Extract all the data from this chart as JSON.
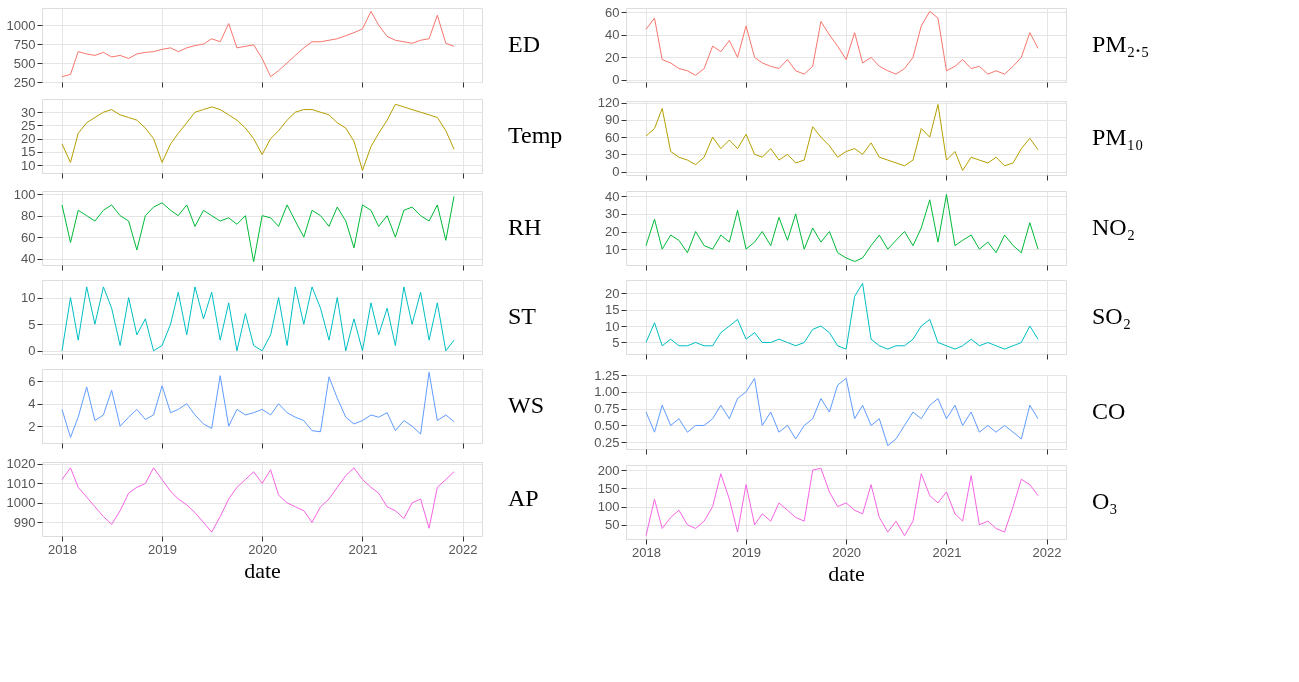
{
  "chart_data": [
    {
      "type": "line",
      "ylabel": "ED",
      "color": "#F8766D",
      "ylim": [
        250,
        1225
      ],
      "yticks": [
        250,
        500,
        750,
        1000
      ],
      "tick_labels": "y",
      "grid": true,
      "xlim": [
        "2017-10-20",
        "2022-03-13"
      ],
      "xticks": [
        "2018",
        "2019",
        "2020",
        "2021",
        "2022"
      ],
      "x": [
        "2018-01",
        "2018-02",
        "2018-03",
        "2018-04",
        "2018-05",
        "2018-06",
        "2018-07",
        "2018-08",
        "2018-09",
        "2018-10",
        "2018-11",
        "2018-12",
        "2019-01",
        "2019-02",
        "2019-03",
        "2019-04",
        "2019-05",
        "2019-06",
        "2019-07",
        "2019-08",
        "2019-09",
        "2019-10",
        "2019-11",
        "2019-12",
        "2020-01",
        "2020-02",
        "2020-03",
        "2020-04",
        "2020-05",
        "2020-06",
        "2020-07",
        "2020-08",
        "2020-09",
        "2020-10",
        "2020-11",
        "2020-12",
        "2021-01",
        "2021-02",
        "2021-03",
        "2021-04",
        "2021-05",
        "2021-06",
        "2021-07",
        "2021-08",
        "2021-09",
        "2021-10",
        "2021-11",
        "2021-12"
      ],
      "values": [
        320,
        350,
        650,
        620,
        600,
        640,
        580,
        600,
        560,
        620,
        640,
        650,
        680,
        700,
        650,
        700,
        730,
        750,
        820,
        780,
        1020,
        700,
        720,
        740,
        560,
        320,
        400,
        500,
        600,
        700,
        780,
        780,
        800,
        820,
        860,
        900,
        950,
        1180,
        1000,
        850,
        800,
        780,
        760,
        800,
        820,
        1130,
        760,
        720
      ]
    },
    {
      "type": "line",
      "ylabel": "Temp",
      "color": "#B79F00",
      "ylim": [
        7,
        35
      ],
      "yticks": [
        10,
        15,
        20,
        25,
        30
      ],
      "tick_labels": "y",
      "grid": true,
      "xlim": [
        "2017-10-20",
        "2022-03-13"
      ],
      "xticks": [
        "2018",
        "2019",
        "2020",
        "2021",
        "2022"
      ],
      "x": [
        "2018-01",
        "2018-02",
        "2018-03",
        "2018-04",
        "2018-05",
        "2018-06",
        "2018-07",
        "2018-08",
        "2018-09",
        "2018-10",
        "2018-11",
        "2018-12",
        "2019-01",
        "2019-02",
        "2019-03",
        "2019-04",
        "2019-05",
        "2019-06",
        "2019-07",
        "2019-08",
        "2019-09",
        "2019-10",
        "2019-11",
        "2019-12",
        "2020-01",
        "2020-02",
        "2020-03",
        "2020-04",
        "2020-05",
        "2020-06",
        "2020-07",
        "2020-08",
        "2020-09",
        "2020-10",
        "2020-11",
        "2020-12",
        "2021-01",
        "2021-02",
        "2021-03",
        "2021-04",
        "2021-05",
        "2021-06",
        "2021-07",
        "2021-08",
        "2021-09",
        "2021-10",
        "2021-11",
        "2021-12"
      ],
      "values": [
        18,
        11,
        22,
        26,
        28,
        30,
        31,
        29,
        28,
        27,
        24,
        20,
        11,
        18,
        22,
        26,
        30,
        31,
        32,
        31,
        29,
        27,
        24,
        20,
        14,
        20,
        23,
        27,
        30,
        31,
        31,
        30,
        29,
        26,
        24,
        19,
        8,
        17,
        22,
        27,
        33,
        32,
        31,
        30,
        29,
        28,
        23,
        16
      ]
    },
    {
      "type": "line",
      "ylabel": "RH",
      "color": "#00BA38",
      "ylim": [
        34,
        103
      ],
      "yticks": [
        40,
        60,
        80,
        100
      ],
      "tick_labels": "y",
      "grid": true,
      "xlim": [
        "2017-10-20",
        "2022-03-13"
      ],
      "xticks": [
        "2018",
        "2019",
        "2020",
        "2021",
        "2022"
      ],
      "x": [
        "2018-01",
        "2018-02",
        "2018-03",
        "2018-04",
        "2018-05",
        "2018-06",
        "2018-07",
        "2018-08",
        "2018-09",
        "2018-10",
        "2018-11",
        "2018-12",
        "2019-01",
        "2019-02",
        "2019-03",
        "2019-04",
        "2019-05",
        "2019-06",
        "2019-07",
        "2019-08",
        "2019-09",
        "2019-10",
        "2019-11",
        "2019-12",
        "2020-01",
        "2020-02",
        "2020-03",
        "2020-04",
        "2020-05",
        "2020-06",
        "2020-07",
        "2020-08",
        "2020-09",
        "2020-10",
        "2020-11",
        "2020-12",
        "2021-01",
        "2021-02",
        "2021-03",
        "2021-04",
        "2021-05",
        "2021-06",
        "2021-07",
        "2021-08",
        "2021-09",
        "2021-10",
        "2021-11",
        "2021-12"
      ],
      "values": [
        90,
        55,
        85,
        80,
        75,
        85,
        90,
        80,
        75,
        48,
        80,
        88,
        92,
        85,
        80,
        90,
        70,
        85,
        80,
        75,
        78,
        72,
        80,
        37,
        80,
        78,
        70,
        90,
        75,
        60,
        85,
        80,
        70,
        88,
        75,
        50,
        90,
        85,
        70,
        80,
        60,
        85,
        88,
        80,
        75,
        90,
        57,
        98
      ]
    },
    {
      "type": "line",
      "ylabel": "ST",
      "color": "#00BFC4",
      "ylim": [
        -0.6,
        13.3
      ],
      "yticks": [
        0,
        5,
        10
      ],
      "tick_labels": "y",
      "grid": true,
      "xlim": [
        "2017-10-20",
        "2022-03-13"
      ],
      "xticks": [
        "2018",
        "2019",
        "2020",
        "2021",
        "2022"
      ],
      "x": [
        "2018-01",
        "2018-02",
        "2018-03",
        "2018-04",
        "2018-05",
        "2018-06",
        "2018-07",
        "2018-08",
        "2018-09",
        "2018-10",
        "2018-11",
        "2018-12",
        "2019-01",
        "2019-02",
        "2019-03",
        "2019-04",
        "2019-05",
        "2019-06",
        "2019-07",
        "2019-08",
        "2019-09",
        "2019-10",
        "2019-11",
        "2019-12",
        "2020-01",
        "2020-02",
        "2020-03",
        "2020-04",
        "2020-05",
        "2020-06",
        "2020-07",
        "2020-08",
        "2020-09",
        "2020-10",
        "2020-11",
        "2020-12",
        "2021-01",
        "2021-02",
        "2021-03",
        "2021-04",
        "2021-05",
        "2021-06",
        "2021-07",
        "2021-08",
        "2021-09",
        "2021-10",
        "2021-11",
        "2021-12"
      ],
      "values": [
        0,
        10,
        2,
        12,
        5,
        12,
        8,
        1,
        10,
        3,
        6,
        0,
        1,
        5,
        11,
        3,
        12,
        6,
        11,
        2,
        9,
        0,
        7,
        1,
        0,
        3,
        10,
        1,
        12,
        5,
        12,
        8,
        2,
        10,
        0,
        6,
        0,
        9,
        3,
        8,
        1,
        12,
        5,
        11,
        2,
        9,
        0,
        2
      ]
    },
    {
      "type": "line",
      "ylabel": "WS",
      "color": "#619CFF",
      "ylim": [
        0.5,
        7.1
      ],
      "yticks": [
        2,
        4,
        6
      ],
      "tick_labels": "y",
      "grid": true,
      "xlim": [
        "2017-10-20",
        "2022-03-13"
      ],
      "xticks": [
        "2018",
        "2019",
        "2020",
        "2021",
        "2022"
      ],
      "x": [
        "2018-01",
        "2018-02",
        "2018-03",
        "2018-04",
        "2018-05",
        "2018-06",
        "2018-07",
        "2018-08",
        "2018-09",
        "2018-10",
        "2018-11",
        "2018-12",
        "2019-01",
        "2019-02",
        "2019-03",
        "2019-04",
        "2019-05",
        "2019-06",
        "2019-07",
        "2019-08",
        "2019-09",
        "2019-10",
        "2019-11",
        "2019-12",
        "2020-01",
        "2020-02",
        "2020-03",
        "2020-04",
        "2020-05",
        "2020-06",
        "2020-07",
        "2020-08",
        "2020-09",
        "2020-10",
        "2020-11",
        "2020-12",
        "2021-01",
        "2021-02",
        "2021-03",
        "2021-04",
        "2021-05",
        "2021-06",
        "2021-07",
        "2021-08",
        "2021-09",
        "2021-10",
        "2021-11",
        "2021-12"
      ],
      "values": [
        3.5,
        1.0,
        2.8,
        5.5,
        2.5,
        3.0,
        5.2,
        2.0,
        2.8,
        3.5,
        2.6,
        3.0,
        5.6,
        3.2,
        3.5,
        4.0,
        3.0,
        2.2,
        1.8,
        6.5,
        2.0,
        3.5,
        3.0,
        3.2,
        3.5,
        3.0,
        4.0,
        3.2,
        2.8,
        2.5,
        1.6,
        1.5,
        6.4,
        4.5,
        2.8,
        2.2,
        2.5,
        3.0,
        2.8,
        3.2,
        1.6,
        2.5,
        2.0,
        1.3,
        6.8,
        2.5,
        3.0,
        2.4
      ]
    },
    {
      "type": "line",
      "ylabel": "AP",
      "xlabel": "date",
      "color": "#F564E3",
      "ylim": [
        983,
        1021
      ],
      "yticks": [
        990,
        1000,
        1010,
        1020
      ],
      "grid": true,
      "xlim": [
        "2017-10-20",
        "2022-03-13"
      ],
      "xticks": [
        "2018",
        "2019",
        "2020",
        "2021",
        "2022"
      ],
      "x": [
        "2018-01",
        "2018-02",
        "2018-03",
        "2018-04",
        "2018-05",
        "2018-06",
        "2018-07",
        "2018-08",
        "2018-09",
        "2018-10",
        "2018-11",
        "2018-12",
        "2019-01",
        "2019-02",
        "2019-03",
        "2019-04",
        "2019-05",
        "2019-06",
        "2019-07",
        "2019-08",
        "2019-09",
        "2019-10",
        "2019-11",
        "2019-12",
        "2020-01",
        "2020-02",
        "2020-03",
        "2020-04",
        "2020-05",
        "2020-06",
        "2020-07",
        "2020-08",
        "2020-09",
        "2020-10",
        "2020-11",
        "2020-12",
        "2021-01",
        "2021-02",
        "2021-03",
        "2021-04",
        "2021-05",
        "2021-06",
        "2021-07",
        "2021-08",
        "2021-09",
        "2021-10",
        "2021-11",
        "2021-12"
      ],
      "values": [
        1012,
        1018,
        1008,
        1003,
        998,
        993,
        989,
        996,
        1005,
        1008,
        1010,
        1018,
        1012,
        1006,
        1002,
        999,
        995,
        990,
        985,
        993,
        1002,
        1008,
        1012,
        1016,
        1010,
        1017,
        1004,
        1000,
        998,
        996,
        990,
        998,
        1002,
        1008,
        1014,
        1018,
        1012,
        1008,
        1005,
        998,
        996,
        992,
        1000,
        1002,
        987,
        1008,
        1012,
        1016
      ]
    },
    {
      "type": "line",
      "ylabel": "PM₂.₅",
      "color": "#F8766D",
      "ylim": [
        -2,
        64
      ],
      "yticks": [
        0,
        20,
        40,
        60
      ],
      "tick_labels": "y",
      "grid": true,
      "xlim": [
        "2017-10-20",
        "2022-03-13"
      ],
      "xticks": [
        "2018",
        "2019",
        "2020",
        "2021",
        "2022"
      ],
      "x": [
        "2018-01",
        "2018-02",
        "2018-03",
        "2018-04",
        "2018-05",
        "2018-06",
        "2018-07",
        "2018-08",
        "2018-09",
        "2018-10",
        "2018-11",
        "2018-12",
        "2019-01",
        "2019-02",
        "2019-03",
        "2019-04",
        "2019-05",
        "2019-06",
        "2019-07",
        "2019-08",
        "2019-09",
        "2019-10",
        "2019-11",
        "2019-12",
        "2020-01",
        "2020-02",
        "2020-03",
        "2020-04",
        "2020-05",
        "2020-06",
        "2020-07",
        "2020-08",
        "2020-09",
        "2020-10",
        "2020-11",
        "2020-12",
        "2021-01",
        "2021-02",
        "2021-03",
        "2021-04",
        "2021-05",
        "2021-06",
        "2021-07",
        "2021-08",
        "2021-09",
        "2021-10",
        "2021-11",
        "2021-12"
      ],
      "values": [
        45,
        55,
        18,
        15,
        10,
        8,
        4,
        10,
        30,
        25,
        35,
        20,
        48,
        20,
        15,
        12,
        10,
        18,
        8,
        5,
        12,
        52,
        40,
        30,
        18,
        42,
        15,
        20,
        12,
        8,
        5,
        10,
        20,
        48,
        61,
        55,
        8,
        12,
        18,
        10,
        12,
        5,
        8,
        5,
        12,
        20,
        42,
        28
      ]
    },
    {
      "type": "line",
      "ylabel": "PM₁₀",
      "color": "#B79F00",
      "ylim": [
        -6,
        123
      ],
      "yticks": [
        0,
        30,
        60,
        90,
        120
      ],
      "tick_labels": "y",
      "grid": true,
      "xlim": [
        "2017-10-20",
        "2022-03-13"
      ],
      "xticks": [
        "2018",
        "2019",
        "2020",
        "2021",
        "2022"
      ],
      "x": [
        "2018-01",
        "2018-02",
        "2018-03",
        "2018-04",
        "2018-05",
        "2018-06",
        "2018-07",
        "2018-08",
        "2018-09",
        "2018-10",
        "2018-11",
        "2018-12",
        "2019-01",
        "2019-02",
        "2019-03",
        "2019-04",
        "2019-05",
        "2019-06",
        "2019-07",
        "2019-08",
        "2019-09",
        "2019-10",
        "2019-11",
        "2019-12",
        "2020-01",
        "2020-02",
        "2020-03",
        "2020-04",
        "2020-05",
        "2020-06",
        "2020-07",
        "2020-08",
        "2020-09",
        "2020-10",
        "2020-11",
        "2020-12",
        "2021-01",
        "2021-02",
        "2021-03",
        "2021-04",
        "2021-05",
        "2021-06",
        "2021-07",
        "2021-08",
        "2021-09",
        "2021-10",
        "2021-11",
        "2021-12"
      ],
      "values": [
        62,
        75,
        110,
        35,
        25,
        20,
        12,
        25,
        60,
        40,
        55,
        40,
        65,
        30,
        25,
        40,
        20,
        30,
        15,
        20,
        78,
        60,
        45,
        25,
        35,
        40,
        30,
        50,
        25,
        20,
        15,
        10,
        20,
        75,
        60,
        117,
        20,
        35,
        2,
        25,
        20,
        15,
        25,
        10,
        15,
        40,
        58,
        38
      ]
    },
    {
      "type": "line",
      "ylabel": "NO₂",
      "color": "#00BA38",
      "ylim": [
        1,
        43
      ],
      "yticks": [
        10,
        20,
        30,
        40
      ],
      "tick_labels": "y",
      "grid": true,
      "xlim": [
        "2017-10-20",
        "2022-03-13"
      ],
      "xticks": [
        "2018",
        "2019",
        "2020",
        "2021",
        "2022"
      ],
      "x": [
        "2018-01",
        "2018-02",
        "2018-03",
        "2018-04",
        "2018-05",
        "2018-06",
        "2018-07",
        "2018-08",
        "2018-09",
        "2018-10",
        "2018-11",
        "2018-12",
        "2019-01",
        "2019-02",
        "2019-03",
        "2019-04",
        "2019-05",
        "2019-06",
        "2019-07",
        "2019-08",
        "2019-09",
        "2019-10",
        "2019-11",
        "2019-12",
        "2020-01",
        "2020-02",
        "2020-03",
        "2020-04",
        "2020-05",
        "2020-06",
        "2020-07",
        "2020-08",
        "2020-09",
        "2020-10",
        "2020-11",
        "2020-12",
        "2021-01",
        "2021-02",
        "2021-03",
        "2021-04",
        "2021-05",
        "2021-06",
        "2021-07",
        "2021-08",
        "2021-09",
        "2021-10",
        "2021-11",
        "2021-12"
      ],
      "values": [
        12,
        27,
        10,
        18,
        15,
        8,
        20,
        12,
        10,
        18,
        14,
        32,
        10,
        14,
        20,
        12,
        28,
        15,
        30,
        10,
        22,
        14,
        20,
        8,
        5,
        3,
        5,
        12,
        18,
        10,
        15,
        20,
        12,
        22,
        38,
        14,
        41,
        12,
        15,
        18,
        10,
        14,
        8,
        18,
        12,
        8,
        25,
        10
      ]
    },
    {
      "type": "line",
      "ylabel": "SO₂",
      "color": "#00BFC4",
      "ylim": [
        1.5,
        24
      ],
      "yticks": [
        5,
        10,
        15,
        20
      ],
      "tick_labels": "y",
      "grid": true,
      "xlim": [
        "2017-10-20",
        "2022-03-13"
      ],
      "xticks": [
        "2018",
        "2019",
        "2020",
        "2021",
        "2022"
      ],
      "x": [
        "2018-01",
        "2018-02",
        "2018-03",
        "2018-04",
        "2018-05",
        "2018-06",
        "2018-07",
        "2018-08",
        "2018-09",
        "2018-10",
        "2018-11",
        "2018-12",
        "2019-01",
        "2019-02",
        "2019-03",
        "2019-04",
        "2019-05",
        "2019-06",
        "2019-07",
        "2019-08",
        "2019-09",
        "2019-10",
        "2019-11",
        "2019-12",
        "2020-01",
        "2020-02",
        "2020-03",
        "2020-04",
        "2020-05",
        "2020-06",
        "2020-07",
        "2020-08",
        "2020-09",
        "2020-10",
        "2020-11",
        "2020-12",
        "2021-01",
        "2021-02",
        "2021-03",
        "2021-04",
        "2021-05",
        "2021-06",
        "2021-07",
        "2021-08",
        "2021-09",
        "2021-10",
        "2021-11",
        "2021-12"
      ],
      "values": [
        5,
        11,
        4,
        6,
        4,
        4,
        5,
        4,
        4,
        8,
        10,
        12,
        6,
        8,
        5,
        5,
        6,
        5,
        4,
        5,
        9,
        10,
        8,
        4,
        3,
        19,
        23,
        6,
        4,
        3,
        4,
        4,
        6,
        10,
        12,
        5,
        4,
        3,
        4,
        6,
        4,
        5,
        4,
        3,
        4,
        5,
        10,
        6
      ]
    },
    {
      "type": "line",
      "ylabel": "CO",
      "color": "#619CFF",
      "ylim": [
        0.15,
        1.25
      ],
      "yticks": [
        {
          "value": 0.25,
          "label": "0.25"
        },
        {
          "value": 0.5,
          "label": "0.50"
        },
        {
          "value": 0.75,
          "label": "0.75"
        },
        {
          "value": 1.0,
          "label": "1.00"
        },
        {
          "value": 1.25,
          "label": "1.25"
        }
      ],
      "tick_labels": "y",
      "grid": true,
      "xlim": [
        "2017-10-20",
        "2022-03-13"
      ],
      "xticks": [
        "2018",
        "2019",
        "2020",
        "2021",
        "2022"
      ],
      "x": [
        "2018-01",
        "2018-02",
        "2018-03",
        "2018-04",
        "2018-05",
        "2018-06",
        "2018-07",
        "2018-08",
        "2018-09",
        "2018-10",
        "2018-11",
        "2018-12",
        "2019-01",
        "2019-02",
        "2019-03",
        "2019-04",
        "2019-05",
        "2019-06",
        "2019-07",
        "2019-08",
        "2019-09",
        "2019-10",
        "2019-11",
        "2019-12",
        "2020-01",
        "2020-02",
        "2020-03",
        "2020-04",
        "2020-05",
        "2020-06",
        "2020-07",
        "2020-08",
        "2020-09",
        "2020-10",
        "2020-11",
        "2020-12",
        "2021-01",
        "2021-02",
        "2021-03",
        "2021-04",
        "2021-05",
        "2021-06",
        "2021-07",
        "2021-08",
        "2021-09",
        "2021-10",
        "2021-11",
        "2021-12"
      ],
      "values": [
        0.7,
        0.4,
        0.8,
        0.5,
        0.6,
        0.4,
        0.5,
        0.5,
        0.6,
        0.8,
        0.6,
        0.9,
        1.0,
        1.2,
        0.5,
        0.7,
        0.4,
        0.5,
        0.3,
        0.5,
        0.6,
        0.9,
        0.7,
        1.1,
        1.2,
        0.6,
        0.8,
        0.5,
        0.6,
        0.2,
        0.3,
        0.5,
        0.7,
        0.6,
        0.8,
        0.9,
        0.6,
        0.8,
        0.5,
        0.7,
        0.4,
        0.5,
        0.4,
        0.5,
        0.4,
        0.3,
        0.8,
        0.6
      ]
    },
    {
      "type": "line",
      "ylabel": "O₃",
      "xlabel": "date",
      "color": "#F564E3",
      "ylim": [
        11,
        214
      ],
      "yticks": [
        50,
        100,
        150,
        200
      ],
      "grid": true,
      "xlim": [
        "2017-10-20",
        "2022-03-13"
      ],
      "xticks": [
        "2018",
        "2019",
        "2020",
        "2021",
        "2022"
      ],
      "x": [
        "2018-01",
        "2018-02",
        "2018-03",
        "2018-04",
        "2018-05",
        "2018-06",
        "2018-07",
        "2018-08",
        "2018-09",
        "2018-10",
        "2018-11",
        "2018-12",
        "2019-01",
        "2019-02",
        "2019-03",
        "2019-04",
        "2019-05",
        "2019-06",
        "2019-07",
        "2019-08",
        "2019-09",
        "2019-10",
        "2019-11",
        "2019-12",
        "2020-01",
        "2020-02",
        "2020-03",
        "2020-04",
        "2020-05",
        "2020-06",
        "2020-07",
        "2020-08",
        "2020-09",
        "2020-10",
        "2020-11",
        "2020-12",
        "2021-01",
        "2021-02",
        "2021-03",
        "2021-04",
        "2021-05",
        "2021-06",
        "2021-07",
        "2021-08",
        "2021-09",
        "2021-10",
        "2021-11",
        "2021-12"
      ],
      "values": [
        20,
        120,
        40,
        70,
        90,
        50,
        40,
        60,
        100,
        190,
        120,
        30,
        160,
        50,
        80,
        60,
        110,
        90,
        70,
        60,
        200,
        205,
        140,
        100,
        110,
        90,
        80,
        160,
        70,
        30,
        60,
        20,
        60,
        190,
        130,
        110,
        140,
        80,
        60,
        185,
        50,
        60,
        40,
        30,
        100,
        175,
        160,
        130
      ]
    }
  ]
}
